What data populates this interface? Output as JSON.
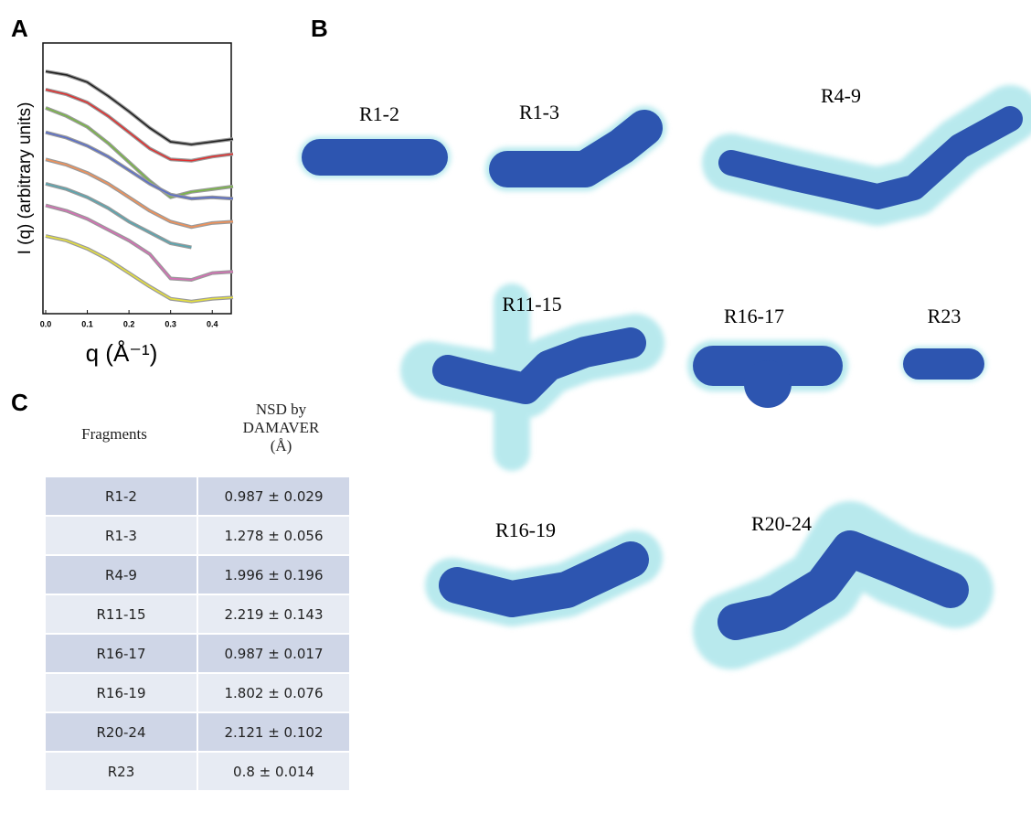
{
  "panels": {
    "a": "A",
    "b": "B",
    "c": "C"
  },
  "chart_data": {
    "type": "line",
    "ylabel": "I (q) (arbitrary units)",
    "xlabel": "q (Å⁻¹)",
    "x": [
      0,
      0.05,
      0.1,
      0.15,
      0.2,
      0.25,
      0.3,
      0.35,
      0.4,
      0.45
    ],
    "series": [
      {
        "color": "#222222",
        "values": [
          8.95,
          8.82,
          8.55,
          8.04,
          7.47,
          6.86,
          6.35,
          6.25,
          6.35,
          6.45
        ]
      },
      {
        "color": "#e03030",
        "values": [
          8.28,
          8.1,
          7.8,
          7.3,
          6.7,
          6.1,
          5.7,
          5.65,
          5.8,
          5.9
        ]
      },
      {
        "color": "#7ab648",
        "values": [
          7.6,
          7.3,
          6.9,
          6.3,
          5.6,
          4.9,
          4.3,
          4.5,
          4.6,
          4.7
        ]
      },
      {
        "color": "#5b6fc9",
        "values": [
          6.7,
          6.5,
          6.2,
          5.8,
          5.3,
          4.8,
          4.4,
          4.25,
          4.3,
          4.25
        ]
      },
      {
        "color": "#f0925a",
        "values": [
          5.7,
          5.5,
          5.2,
          4.8,
          4.3,
          3.8,
          3.4,
          3.2,
          3.35,
          3.4
        ]
      },
      {
        "color": "#5aa6b0",
        "values": [
          4.8,
          4.6,
          4.3,
          3.9,
          3.4,
          3.0,
          2.6,
          2.45,
          null,
          null
        ]
      },
      {
        "color": "#d56fb5",
        "values": [
          4.0,
          3.8,
          3.5,
          3.1,
          2.7,
          2.2,
          1.3,
          1.25,
          1.5,
          1.55
        ]
      },
      {
        "color": "#e5e040",
        "values": [
          2.87,
          2.7,
          2.4,
          2.0,
          1.5,
          1.0,
          0.55,
          0.45,
          0.55,
          0.6
        ]
      }
    ],
    "xlim": [
      0,
      0.45
    ],
    "ylim": [
      0,
      10
    ],
    "xticks": [
      {
        "value": 0,
        "label": "0.0"
      },
      0.1,
      0.2,
      0.3,
      0.4
    ]
  },
  "shapes": [
    {
      "label": "R1-2"
    },
    {
      "label": "R1-3"
    },
    {
      "label": "R4-9"
    },
    {
      "label": "R11-15"
    },
    {
      "label": "R16-17"
    },
    {
      "label": "R23"
    },
    {
      "label": "R16-19"
    },
    {
      "label": "R20-24"
    }
  ],
  "table": {
    "header": [
      "Fragments",
      "NSD by DAMAVER (Å)"
    ],
    "rows": [
      [
        "R1-2",
        "0.987 ± 0.029"
      ],
      [
        "R1-3",
        "1.278 ± 0.056"
      ],
      [
        "R4-9",
        "1.996 ± 0.196"
      ],
      [
        "R11-15",
        "2.219 ± 0.143"
      ],
      [
        "R16-17",
        "0.987 ± 0.017"
      ],
      [
        "R16-19",
        "1.802 ± 0.076"
      ],
      [
        "R20-24",
        "2.121 ± 0.102"
      ],
      [
        "R23",
        "0.8 ± 0.014"
      ]
    ]
  }
}
